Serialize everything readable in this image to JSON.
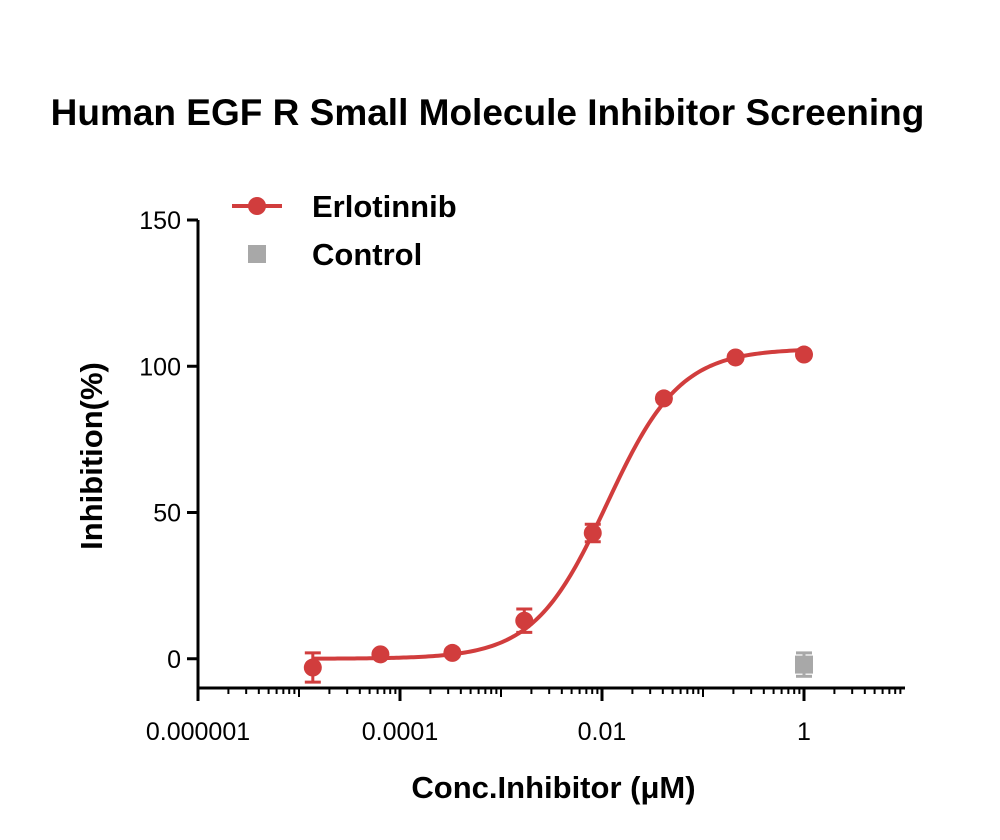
{
  "chart_data": {
    "type": "scatter",
    "title": "Human EGF R Small Molecule Inhibitor Screening",
    "xlabel": "Conc.Inhibitor (μM)",
    "ylabel": "Inhibition(%)",
    "x_scale": "log",
    "xlim": [
      1e-06,
      10
    ],
    "ylim": [
      -10,
      150
    ],
    "x_ticks": [
      1e-06,
      0.0001,
      0.01,
      1
    ],
    "x_tick_labels": [
      "0.000001",
      "0.0001",
      "0.01",
      "1"
    ],
    "y_ticks": [
      0,
      50,
      100,
      150
    ],
    "y_tick_labels": [
      "0",
      "50",
      "100",
      "150"
    ],
    "legend_position": "top-left",
    "series": [
      {
        "name": "Erlotinnib",
        "color": "#d13d3d",
        "marker": "circle",
        "fit": "sigmoidal",
        "points": [
          {
            "x": 1.37e-05,
            "y": -3,
            "err": 5
          },
          {
            "x": 6.4e-05,
            "y": 1.5,
            "err": 1
          },
          {
            "x": 0.00033,
            "y": 2,
            "err": 1
          },
          {
            "x": 0.0017,
            "y": 13,
            "err": 4
          },
          {
            "x": 0.0081,
            "y": 43,
            "err": 3
          },
          {
            "x": 0.041,
            "y": 89,
            "err": 1
          },
          {
            "x": 0.21,
            "y": 103,
            "err": 1
          },
          {
            "x": 1,
            "y": 104,
            "err": 1
          }
        ],
        "fit_params": {
          "bottom": 0,
          "top": 106,
          "ec50": 0.0112,
          "hill": 1.2
        }
      },
      {
        "name": "Control",
        "color": "#a8a8a8",
        "marker": "square",
        "points": [
          {
            "x": 1,
            "y": -2,
            "err": 4
          }
        ]
      }
    ]
  }
}
